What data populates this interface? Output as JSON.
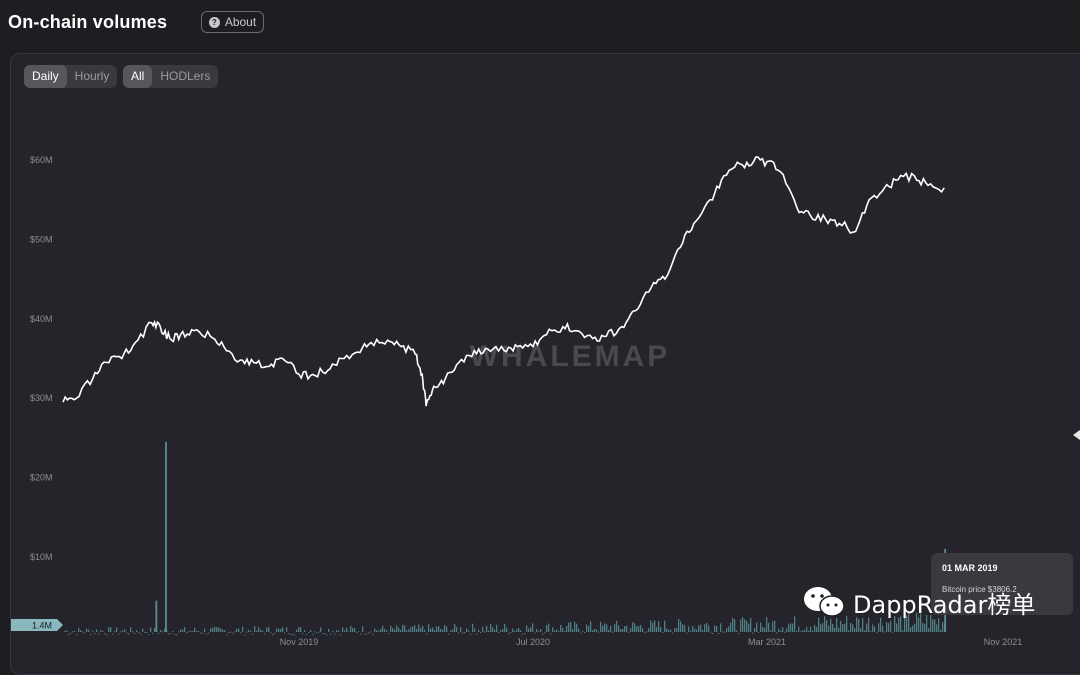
{
  "page": {
    "title": "On-chain volumes",
    "about_label": "About"
  },
  "toggles": {
    "interval": [
      {
        "label": "Daily",
        "active": true
      },
      {
        "label": "Hourly",
        "active": false
      }
    ],
    "holders": [
      {
        "label": "All",
        "active": true
      },
      {
        "label": "HODLers",
        "active": false
      }
    ]
  },
  "watermark": {
    "chart": "WHALEMAP",
    "badge": "DappRadar榜单"
  },
  "tooltip": {
    "date": "01 MAR 2019",
    "price": "Bitcoin price $3806.2"
  },
  "colors": {
    "line": "#ffffff",
    "bars": "#4e7e84",
    "current_tag": "#8ab8bf",
    "background": "#1e1d22"
  },
  "chart_data": {
    "type": "line",
    "title": "On-chain volumes",
    "y_ticks": [
      "$60M",
      "$50M",
      "$40M",
      "$30M",
      "$20M",
      "$10M"
    ],
    "y_tick_values": [
      60000000,
      50000000,
      40000000,
      30000000,
      20000000,
      10000000
    ],
    "x_ticks": [
      "Nov 2019",
      "Jul 2020",
      "Mar 2021",
      "Nov 2021"
    ],
    "x_tick_dates": [
      "2019-11-01",
      "2020-07-01",
      "2021-03-01",
      "2021-11-01"
    ],
    "current_value_label": "1.4M",
    "ylim": [
      0,
      63000000
    ],
    "grid": false,
    "series": [
      {
        "kind": "line",
        "x": [
          "2019-03-01",
          "2019-03-15",
          "2019-04-01",
          "2019-04-15",
          "2019-05-01",
          "2019-05-15",
          "2019-06-01",
          "2019-06-10",
          "2019-06-20",
          "2019-07-01",
          "2019-07-15",
          "2019-08-01",
          "2019-08-15",
          "2019-09-01",
          "2019-09-15",
          "2019-10-01",
          "2019-10-15",
          "2019-11-01",
          "2019-11-15",
          "2019-12-01",
          "2019-12-15",
          "2020-01-01",
          "2020-01-15",
          "2020-02-01",
          "2020-02-15",
          "2020-03-01",
          "2020-03-08",
          "2020-03-12",
          "2020-03-20",
          "2020-04-01",
          "2020-04-15",
          "2020-05-01",
          "2020-05-15",
          "2020-06-01",
          "2020-06-15",
          "2020-07-01",
          "2020-07-15",
          "2020-08-01",
          "2020-08-15",
          "2020-09-01",
          "2020-09-15",
          "2020-10-01",
          "2020-10-15",
          "2020-11-01",
          "2020-11-15",
          "2020-12-01",
          "2020-12-15",
          "2021-01-01",
          "2021-01-15",
          "2021-02-01",
          "2021-02-15",
          "2021-03-01",
          "2021-03-15",
          "2021-04-01",
          "2021-04-15",
          "2021-05-01",
          "2021-05-15",
          "2021-06-01",
          "2021-06-15",
          "2021-07-01",
          "2021-07-15",
          "2021-08-01",
          "2021-08-15",
          "2021-09-01"
        ],
        "values": [
          29500000,
          30000000,
          32500000,
          34500000,
          35000000,
          37000000,
          39500000,
          39000000,
          37500000,
          38000000,
          38500000,
          37800000,
          36500000,
          34800000,
          34500000,
          34000000,
          35000000,
          33000000,
          33000000,
          33500000,
          35000000,
          35800000,
          37000000,
          37300000,
          36500000,
          35500000,
          33000000,
          29000000,
          31500000,
          32500000,
          34500000,
          36000000,
          36200000,
          36000000,
          36500000,
          36500000,
          38000000,
          39000000,
          38500000,
          37500000,
          37800000,
          39000000,
          41000000,
          44000000,
          45000000,
          49000000,
          52000000,
          55000000,
          58000000,
          59500000,
          59800000,
          59800000,
          58500000,
          54000000,
          53000000,
          52500000,
          52000000,
          51000000,
          55000000,
          56500000,
          57500000,
          58000000,
          56800000,
          56500000
        ]
      },
      {
        "kind": "bar",
        "note": "daily on-chain volume",
        "spikes": [
          {
            "x": "2019-06-15",
            "value": 24500000
          },
          {
            "x": "2019-06-05",
            "value": 4500000
          },
          {
            "x": "2021-09-01",
            "value": 11000000
          }
        ],
        "typical_value": 1400000
      }
    ]
  }
}
